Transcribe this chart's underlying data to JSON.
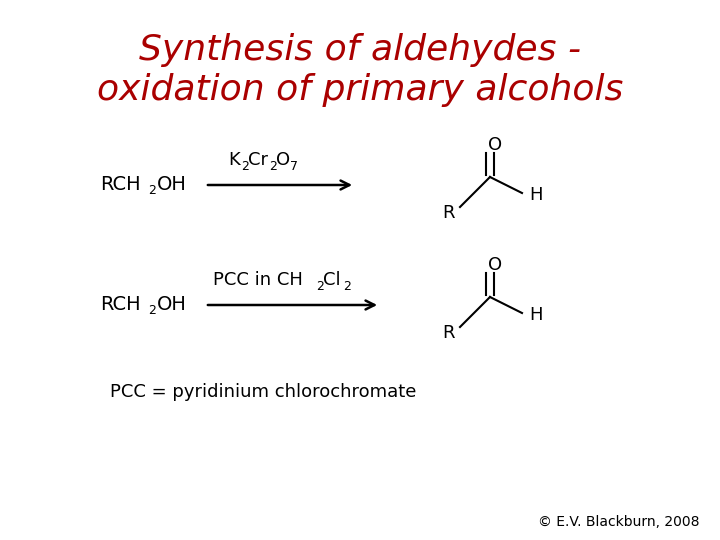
{
  "title_line1": "Synthesis of aldehydes -",
  "title_line2": "oxidation of primary alcohols",
  "title_color": "#aa0000",
  "title_fontsize": 26,
  "bg_color": "#ffffff",
  "text_color": "#000000",
  "footnote": "© E.V. Blackburn, 2008",
  "footnote_fontsize": 10,
  "pcc_note": "PCC = pyridinium chlorochromate",
  "pcc_note_fontsize": 13,
  "chem_fontsize": 14,
  "sub_fontsize": 9,
  "label_fontsize": 13
}
